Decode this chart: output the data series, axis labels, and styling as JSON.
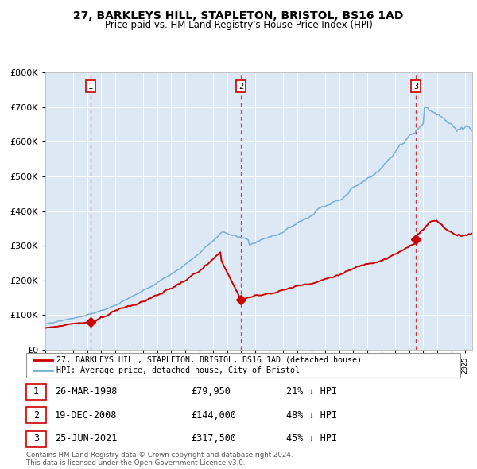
{
  "title": "27, BARKLEYS HILL, STAPLETON, BRISTOL, BS16 1AD",
  "subtitle": "Price paid vs. HM Land Registry's House Price Index (HPI)",
  "legend_red": "27, BARKLEYS HILL, STAPLETON, BRISTOL, BS16 1AD (detached house)",
  "legend_blue": "HPI: Average price, detached house, City of Bristol",
  "transactions": [
    {
      "num": 1,
      "date": "26-MAR-1998",
      "price": 79950,
      "price_str": "£79,950",
      "pct": "21%",
      "year_x": 1998.23
    },
    {
      "num": 2,
      "date": "19-DEC-2008",
      "price": 144000,
      "price_str": "£144,000",
      "pct": "48%",
      "year_x": 2008.97
    },
    {
      "num": 3,
      "date": "25-JUN-2021",
      "price": 317500,
      "price_str": "£317,500",
      "pct": "45%",
      "year_x": 2021.48
    }
  ],
  "footnote1": "Contains HM Land Registry data © Crown copyright and database right 2024.",
  "footnote2": "This data is licensed under the Open Government Licence v3.0.",
  "bg_color": "#dce9f5",
  "red_color": "#cc0000",
  "blue_color": "#7aadd4",
  "ylim": [
    0,
    800000
  ],
  "xlim_start": 1995.0,
  "xlim_end": 2025.5
}
